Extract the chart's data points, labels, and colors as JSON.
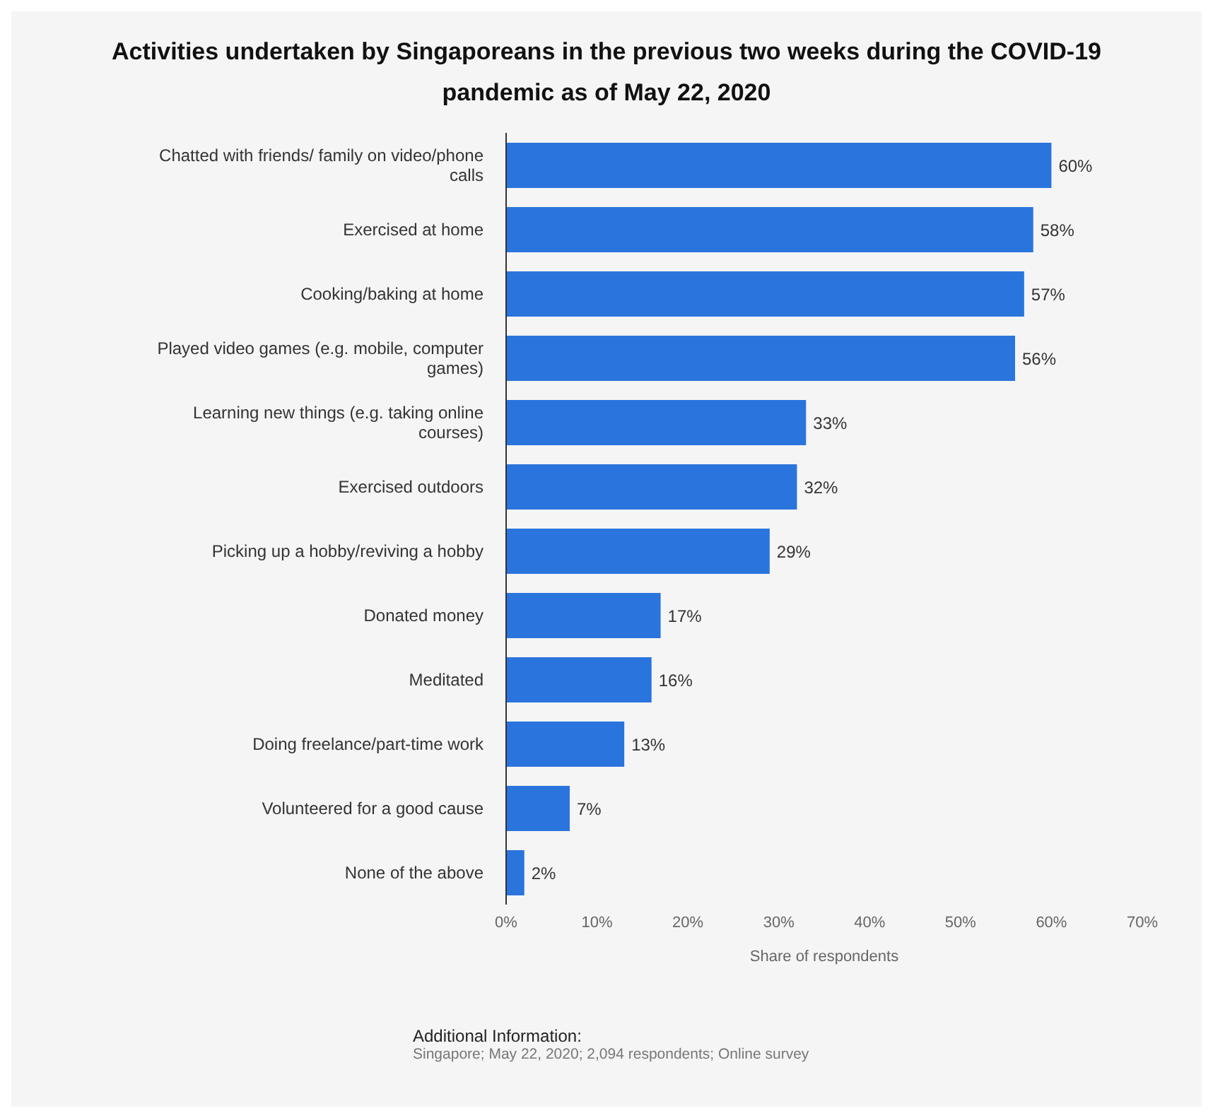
{
  "chart_data": {
    "type": "bar",
    "orientation": "horizontal",
    "title": "Activities undertaken by Singaporeans in the previous two weeks during the COVID-19 pandemic as of May 22, 2020",
    "xlabel": "Share of respondents",
    "categories": [
      "Chatted with friends/ family on video/phone calls",
      "Exercised at home",
      "Cooking/baking at home",
      "Played video games (e.g. mobile, computer games)",
      "Learning new things (e.g. taking online courses)",
      "Exercised outdoors",
      "Picking up a hobby/reviving a hobby",
      "Donated money",
      "Meditated",
      "Doing freelance/part-time work",
      "Volunteered for a good cause",
      "None of the above"
    ],
    "values": [
      60,
      58,
      57,
      56,
      33,
      32,
      29,
      17,
      16,
      13,
      7,
      2
    ],
    "value_labels": [
      "60%",
      "58%",
      "57%",
      "56%",
      "33%",
      "32%",
      "29%",
      "17%",
      "16%",
      "13%",
      "7%",
      "2%"
    ],
    "color": "#2a74dd",
    "xlim": [
      0,
      70
    ],
    "xticks": [
      {
        "value": 0,
        "label": "0%"
      },
      {
        "value": 10,
        "label": "10%"
      },
      {
        "value": 20,
        "label": "20%"
      },
      {
        "value": 30,
        "label": "30%"
      },
      {
        "value": 40,
        "label": "40%"
      },
      {
        "value": 50,
        "label": "50%"
      },
      {
        "value": 60,
        "label": "60%"
      },
      {
        "value": 70,
        "label": "70%"
      }
    ],
    "annotations": [
      "Additional Information:",
      "Singapore; May 22, 2020; 2,094 respondents; Online survey"
    ]
  }
}
